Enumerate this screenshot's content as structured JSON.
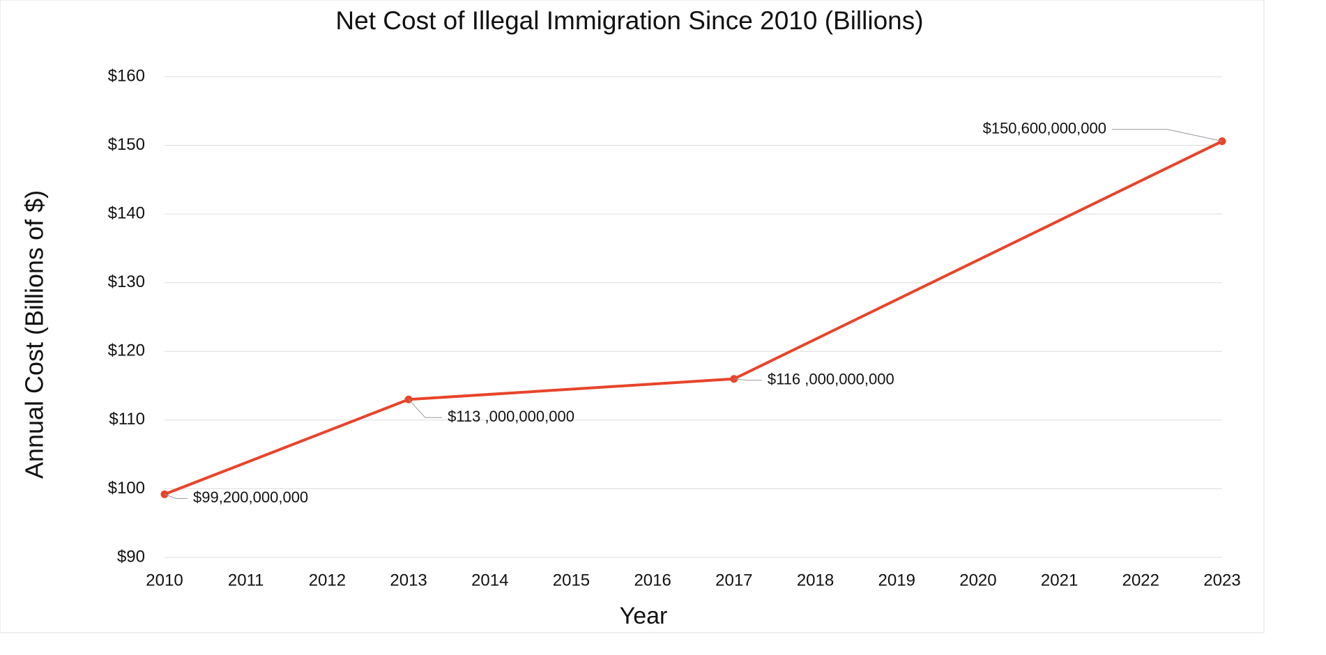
{
  "chart_data": {
    "type": "line",
    "title": "Net Cost of Illegal Immigration Since 2010 (Billions)",
    "x_label": "Year",
    "y_label": "Annual Cost (Billions of $)",
    "x": [
      2010,
      2013,
      2017,
      2023
    ],
    "values": [
      99.2,
      113,
      116,
      150.6
    ],
    "value_labels": [
      "$99,200,000,000",
      "$113 ,000,000,000",
      "$116 ,000,000,000",
      "$150,600,000,000"
    ],
    "color": "#e8442a",
    "xlim": [
      2010,
      2023
    ],
    "xticks": [
      2010,
      2011,
      2012,
      2013,
      2014,
      2015,
      2016,
      2017,
      2018,
      2019,
      2020,
      2021,
      2022,
      2023
    ],
    "ylim": [
      90,
      160
    ],
    "yticks": [
      {
        "value": 90,
        "label": "$90"
      },
      {
        "value": 100,
        "label": "$100"
      },
      {
        "value": 110,
        "label": "$110"
      },
      {
        "value": 120,
        "label": "$120"
      },
      {
        "value": 130,
        "label": "$130"
      },
      {
        "value": 140,
        "label": "$140"
      },
      {
        "value": 150,
        "label": "$150"
      },
      {
        "value": 160,
        "label": "$160"
      }
    ],
    "grid": true
  }
}
